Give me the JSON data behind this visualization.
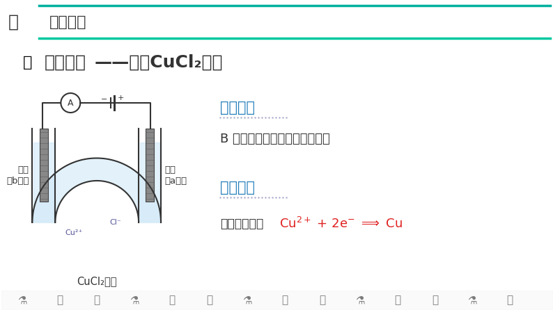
{
  "bg_color": "#ffffff",
  "header_text": "知识精讲",
  "header_color": "#333333",
  "header_line_color1": "#00b0a0",
  "header_line_color2": "#00c8a0",
  "title_text": "实验探究",
  "title_text2": "——电解CuCl₂溶液",
  "title_color": "#333333",
  "section1_title": "实验现象",
  "section1_color": "#1e7ab8",
  "section1_dot_color": "#aaaacc",
  "section1_body": "B 极上逐渐覆盖了一层红色物质",
  "section1_body_color": "#333333",
  "section2_title": "实验分析",
  "section2_color": "#1e7ab8",
  "section2_dot_color": "#aaaacc",
  "section2_prefix": "析出金属铜：",
  "section2_prefix_color": "#333333",
  "section2_eq": "Cu²⁺ + 2e⁻ ═══ Cu",
  "section2_eq_color": "#e02020",
  "diagram_frame_color": "#333333",
  "diagram_solution_color": "#d0e8f8",
  "diagram_electrode_color": "#555555",
  "footer_icon_colors": [
    "#c8a0d0",
    "#d4a0b0",
    "#b8c0e0"
  ],
  "left_label1": "石墨",
  "left_label2": "（b极）",
  "right_label1": "石墨",
  "right_label2": "（a极）",
  "bottom_label": "CuCl₂溶液",
  "cu_label": "Cu²⁺",
  "cl_label": "Cl⁻"
}
